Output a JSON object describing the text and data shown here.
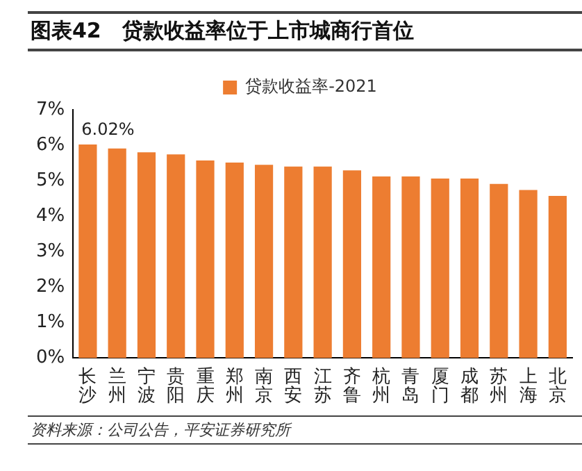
{
  "chart_data": {
    "type": "bar",
    "title": "图表42　贷款收益率位于上市城商行首位",
    "categories": [
      "长沙",
      "兰州",
      "宁波",
      "贵阳",
      "重庆",
      "郑州",
      "南京",
      "西安",
      "江苏",
      "齐鲁",
      "杭州",
      "青岛",
      "厦门",
      "成都",
      "苏州",
      "上海",
      "北京"
    ],
    "series": [
      {
        "name": "贷款收益率-2021",
        "color": "#ed7d31",
        "values": [
          6.02,
          5.91,
          5.8,
          5.74,
          5.57,
          5.51,
          5.45,
          5.4,
          5.4,
          5.29,
          5.12,
          5.12,
          5.06,
          5.06,
          4.91,
          4.74,
          4.57
        ],
        "value_labels": [
          "6.02%",
          null,
          null,
          null,
          null,
          null,
          null,
          null,
          null,
          null,
          null,
          null,
          null,
          null,
          null,
          null,
          null
        ]
      }
    ],
    "ylim": [
      0,
      7
    ],
    "yticks": [
      {
        "value": 0,
        "label": "0%"
      },
      {
        "value": 1,
        "label": "1%"
      },
      {
        "value": 2,
        "label": "2%"
      },
      {
        "value": 3,
        "label": "3%"
      },
      {
        "value": 4,
        "label": "4%"
      },
      {
        "value": 5,
        "label": "5%"
      },
      {
        "value": 6,
        "label": "6%"
      },
      {
        "value": 7,
        "label": "7%"
      }
    ],
    "grid": false,
    "legend": "top",
    "annotations": [
      "资料来源：公司公告，平安证券研究所"
    ]
  }
}
